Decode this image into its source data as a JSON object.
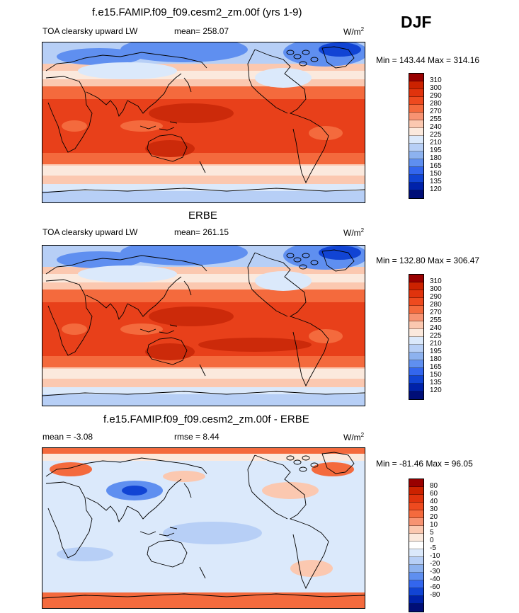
{
  "season": "DJF",
  "panels": [
    {
      "title": "f.e15.FAMIP.f09_f09.cesm2_zm.00f (yrs 1-9)",
      "left_label": "TOA clearsky upward LW",
      "center_label": "mean= 258.07",
      "units_base": "W/m",
      "units_exp": "2",
      "minmax": "Min = 143.44 Max = 314.16",
      "colorbar": {
        "colors": [
          "#990000",
          "#cc2200",
          "#e0330d",
          "#ee4a1f",
          "#f46a3d",
          "#f79372",
          "#fbc8b0",
          "#fbe9dd",
          "#dbe9fb",
          "#b7cff6",
          "#8db2ef",
          "#5f8ff0",
          "#3366ee",
          "#1144d4",
          "#0022aa",
          "#000e77"
        ],
        "ticks": [
          "310",
          "300",
          "290",
          "280",
          "270",
          "255",
          "240",
          "225",
          "210",
          "195",
          "180",
          "165",
          "150",
          "135",
          "120"
        ]
      }
    },
    {
      "title": "ERBE",
      "left_label": "TOA clearsky upward LW",
      "center_label": "mean= 261.15",
      "units_base": "W/m",
      "units_exp": "2",
      "minmax": "Min = 132.80 Max = 306.47",
      "colorbar": {
        "colors": [
          "#990000",
          "#cc2200",
          "#e0330d",
          "#ee4a1f",
          "#f46a3d",
          "#f79372",
          "#fbc8b0",
          "#fbe9dd",
          "#dbe9fb",
          "#b7cff6",
          "#8db2ef",
          "#5f8ff0",
          "#3366ee",
          "#1144d4",
          "#0022aa",
          "#000e77"
        ],
        "ticks": [
          "310",
          "300",
          "290",
          "280",
          "270",
          "255",
          "240",
          "225",
          "210",
          "195",
          "180",
          "165",
          "150",
          "135",
          "120"
        ]
      }
    },
    {
      "title": "f.e15.FAMIP.f09_f09.cesm2_zm.00f - ERBE",
      "left_label": "mean =  -3.08",
      "center_label": "rmse =   8.44",
      "units_base": "W/m",
      "units_exp": "2",
      "minmax": "Min = -81.46 Max =  96.05",
      "colorbar": {
        "colors": [
          "#990000",
          "#cc2200",
          "#e0330d",
          "#ee4a1f",
          "#f46a3d",
          "#f79372",
          "#fbc8b0",
          "#fbe9dd",
          "#ffffff",
          "#dbe9fb",
          "#b7cff6",
          "#8db2ef",
          "#5f8ff0",
          "#3366ee",
          "#1144d4",
          "#0022aa",
          "#000e77"
        ],
        "ticks": [
          "80",
          "60",
          "40",
          "30",
          "20",
          "10",
          "5",
          "0",
          "-5",
          "-10",
          "-20",
          "-30",
          "-40",
          "-60",
          "-80"
        ]
      }
    }
  ],
  "palette": {
    "warm": "#e8401a",
    "warm2": "#f46a3d",
    "peach": "#fbc8b0",
    "pale": "#fbe9dd",
    "cool1": "#dbe9fb",
    "cool2": "#b7cff6",
    "cool3": "#5f8ff0",
    "cool4": "#1144d4"
  }
}
